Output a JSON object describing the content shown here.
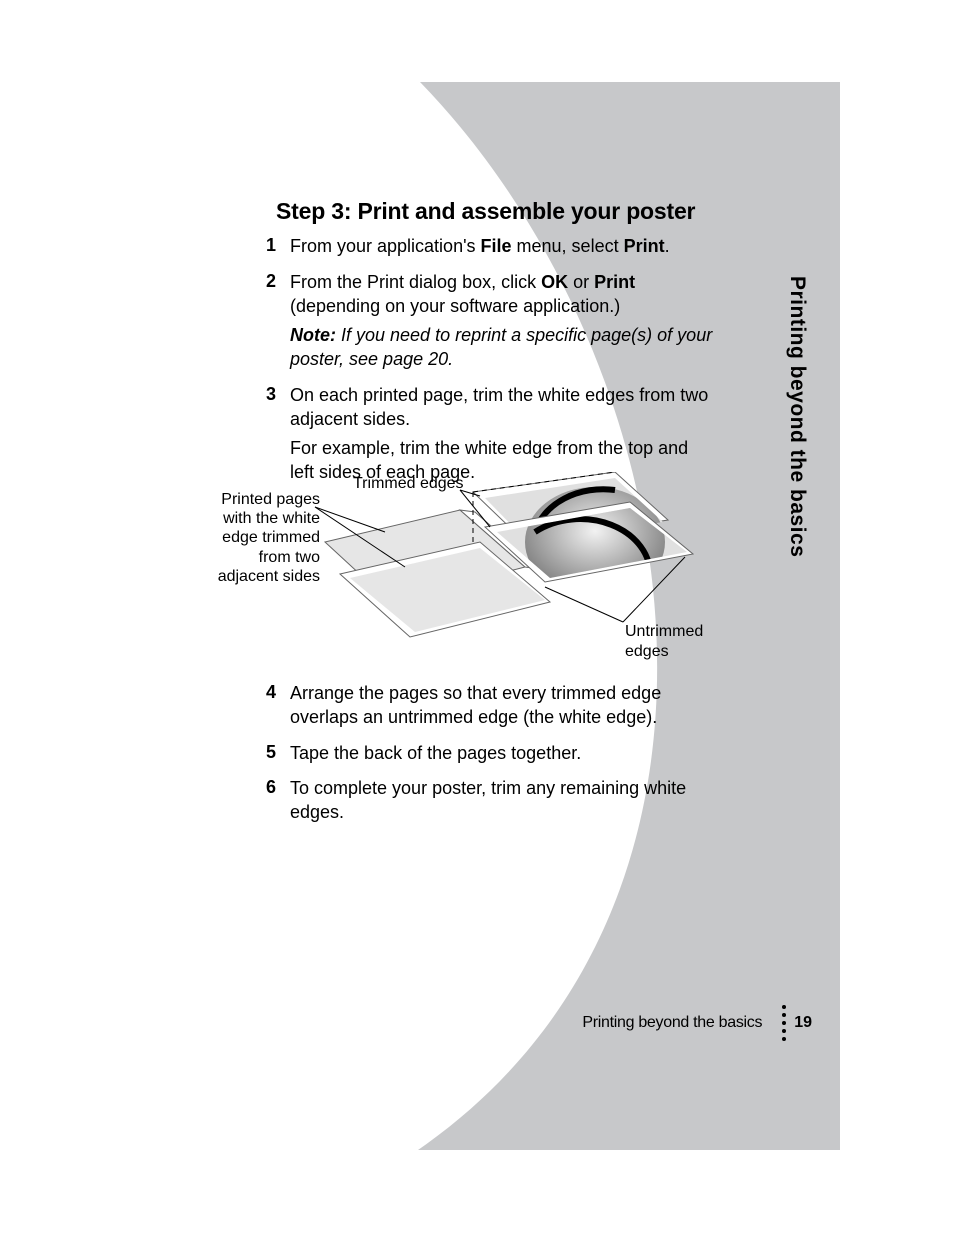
{
  "colors": {
    "page_bg": "#ffffff",
    "curve_bg": "#c7c8ca",
    "text": "#000000",
    "diagram_light": "#e6e6e6",
    "diagram_mid": "#bfbfbf",
    "diagram_gradient_dark": "#7a7a7a",
    "diagram_stroke": "#000000",
    "diagram_border": "#666666"
  },
  "typography": {
    "heading_size_pt": 17,
    "body_size_pt": 14,
    "side_tab_size_pt": 16,
    "font_family": "Myriad Pro"
  },
  "heading": "Step 3: Print and assemble your poster",
  "steps": [
    {
      "num": "1",
      "parts": [
        {
          "t": "From your application's ",
          "style": ""
        },
        {
          "t": "File",
          "style": "bold"
        },
        {
          "t": " menu, select ",
          "style": ""
        },
        {
          "t": "Print",
          "style": "bold"
        },
        {
          "t": ".",
          "style": ""
        }
      ]
    },
    {
      "num": "2",
      "parts": [
        {
          "t": "From the Print dialog box, click ",
          "style": ""
        },
        {
          "t": "OK",
          "style": "bold"
        },
        {
          "t": " or ",
          "style": ""
        },
        {
          "t": "Print",
          "style": "bold"
        },
        {
          "t": " (depending on your software application.)",
          "style": ""
        }
      ],
      "note_label": "Note:",
      "note_text": " If you need to reprint a specific page(s) of your poster, see page 20."
    },
    {
      "num": "3",
      "parts": [
        {
          "t": "On each printed page, trim the white edges from two adjacent sides.",
          "style": ""
        }
      ],
      "extra": "For example, trim the white edge from the top and left sides of each page."
    },
    {
      "num": "4",
      "parts": [
        {
          "t": "Arrange the pages so that every trimmed edge overlaps an untrimmed edge (the white edge).",
          "style": ""
        }
      ]
    },
    {
      "num": "5",
      "parts": [
        {
          "t": "Tape the back of the pages together.",
          "style": ""
        }
      ]
    },
    {
      "num": "6",
      "parts": [
        {
          "t": "To complete your poster, trim any remaining white edges.",
          "style": ""
        }
      ]
    }
  ],
  "diagram": {
    "label_left": "Printed pages with the white edge trimmed from two adjacent sides",
    "label_top": "Trimmed edges",
    "label_right_1": "Untrimmed",
    "label_right_2": "edges"
  },
  "side_tab": "Printing beyond the basics",
  "footer": {
    "title": "Printing beyond the basics",
    "page": "19"
  }
}
